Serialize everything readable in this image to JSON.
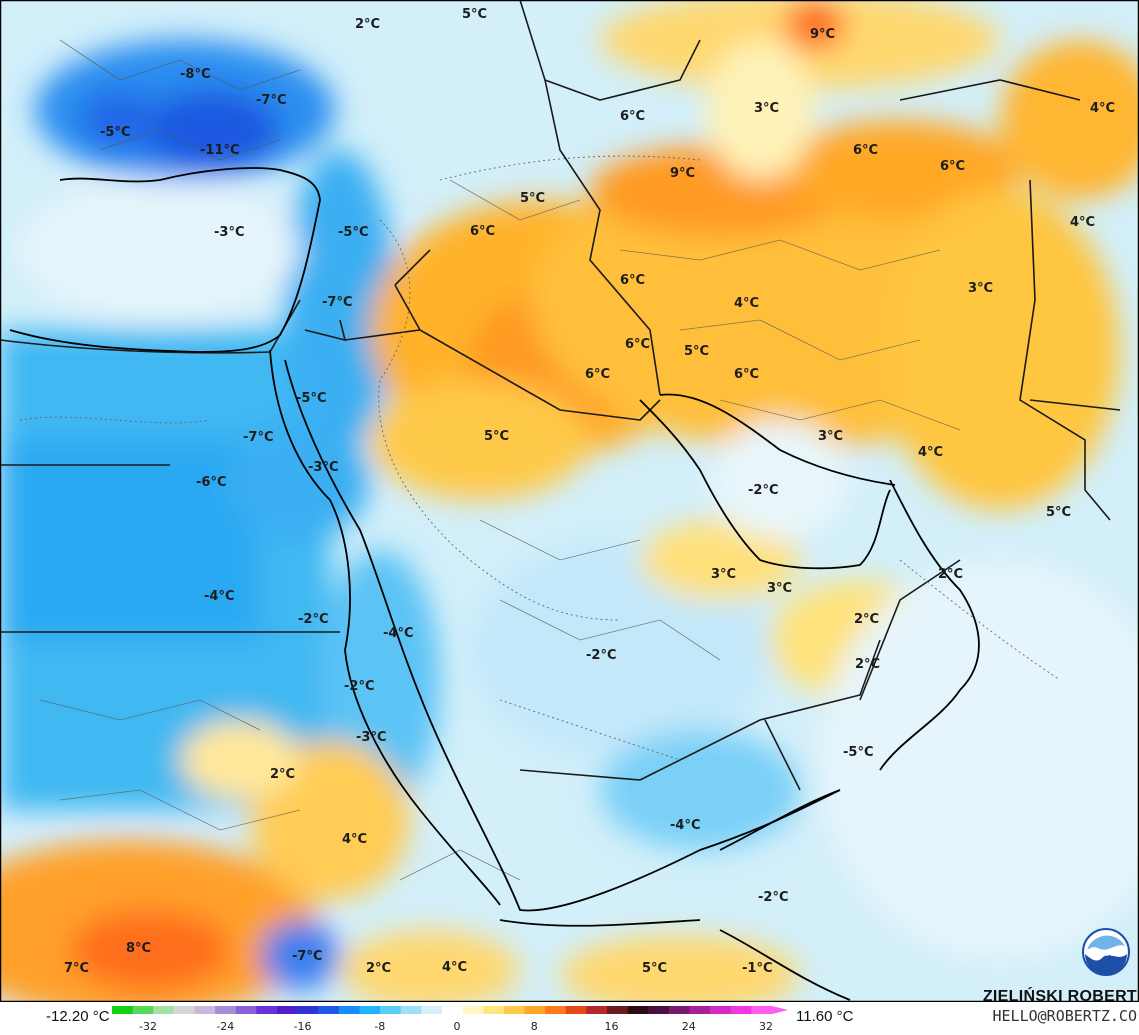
{
  "map": {
    "region": "Middle East",
    "unit": "°C",
    "labels": [
      {
        "text": "2°C"
      },
      {
        "text": "5°C"
      },
      {
        "text": "9°C"
      },
      {
        "text": "-8°C"
      },
      {
        "text": "-7°C"
      },
      {
        "text": "-5°C"
      },
      {
        "text": "-11°C"
      },
      {
        "text": "3°C"
      },
      {
        "text": "4°C"
      },
      {
        "text": "6°C"
      },
      {
        "text": "6°C"
      },
      {
        "text": "9°C"
      },
      {
        "text": "6°C"
      },
      {
        "text": "5°C"
      },
      {
        "text": "6°C"
      },
      {
        "text": "-3°C"
      },
      {
        "text": "-5°C"
      },
      {
        "text": "4°C"
      },
      {
        "text": "3°C"
      },
      {
        "text": "6°C"
      },
      {
        "text": "-7°C"
      },
      {
        "text": "6°C"
      },
      {
        "text": "5°C"
      },
      {
        "text": "6°C"
      },
      {
        "text": "4°C"
      },
      {
        "text": "6°C"
      },
      {
        "text": "-5°C"
      },
      {
        "text": "5°C"
      },
      {
        "text": "3°C"
      },
      {
        "text": "-7°C"
      },
      {
        "text": "4°C"
      },
      {
        "text": "-6°C"
      },
      {
        "text": "-3°C"
      },
      {
        "text": "-2°C"
      },
      {
        "text": "5°C"
      },
      {
        "text": "3°C"
      },
      {
        "text": "3°C"
      },
      {
        "text": "2°C"
      },
      {
        "text": "-4°C"
      },
      {
        "text": "-2°C"
      },
      {
        "text": "-4°C"
      },
      {
        "text": "2°C"
      },
      {
        "text": "-2°C"
      },
      {
        "text": "2°C"
      },
      {
        "text": "-3°C"
      },
      {
        "text": "-2°C"
      },
      {
        "text": "-5°C"
      },
      {
        "text": "2°C"
      },
      {
        "text": "-4°C"
      },
      {
        "text": "4°C"
      },
      {
        "text": "-2°C"
      },
      {
        "text": "8°C"
      },
      {
        "text": "7°C"
      },
      {
        "text": "-7°C"
      },
      {
        "text": "2°C"
      },
      {
        "text": "4°C"
      },
      {
        "text": "5°C"
      },
      {
        "text": "-1°C"
      }
    ]
  },
  "colorbar": {
    "min_label": "-12.20 °C",
    "max_label": "11.60 °C",
    "ticks": [
      "-32",
      "-24",
      "-16",
      "-8",
      "0",
      "8",
      "16",
      "24",
      "32"
    ],
    "colors": [
      "#13d113",
      "#58d858",
      "#a5e0a5",
      "#d6d6d6",
      "#c9b8de",
      "#a78dd8",
      "#8a5fd8",
      "#6b32d6",
      "#4d22cc",
      "#2f34d6",
      "#1e5ae8",
      "#1a8cf5",
      "#25b4fa",
      "#5ccdf8",
      "#9ddff8",
      "#d8f0fa",
      "#ffffff",
      "#fff6c2",
      "#ffe680",
      "#ffc94a",
      "#ffa62a",
      "#ff7a1f",
      "#e34a1a",
      "#b52a26",
      "#6e1a1a",
      "#2d0a14",
      "#4a1040",
      "#7a1a6e",
      "#a8209a",
      "#d32ac4",
      "#f237e0",
      "#ff5cf0"
    ]
  },
  "credit": {
    "name": "ZIELIŃSKI ROBERT",
    "email": "HELLO@ROBERTZ.CO"
  },
  "logo": {
    "text": "NOAA"
  }
}
